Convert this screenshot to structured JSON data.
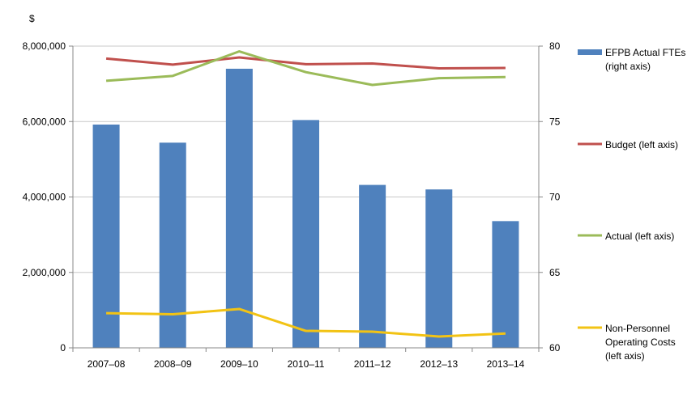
{
  "chart_data": {
    "type": "bar",
    "categories": [
      "2007–08",
      "2008–09",
      "2009–10",
      "2010–11",
      "2011–12",
      "2012–13",
      "2013–14"
    ],
    "left_axis": {
      "unit_label": "$",
      "ylim": [
        0,
        8000000
      ],
      "ticks": [
        0,
        2000000,
        4000000,
        6000000,
        8000000
      ],
      "tick_labels": [
        "0",
        "2,000,000",
        "4,000,000",
        "6,000,000",
        "8,000,000"
      ]
    },
    "right_axis": {
      "ylim": [
        60,
        80
      ],
      "ticks": [
        60,
        65,
        70,
        75,
        80
      ],
      "tick_labels": [
        "60",
        "65",
        "70",
        "75",
        "80"
      ]
    },
    "series": [
      {
        "name": "EFPB Actual FTEs (right axis)",
        "type": "bar",
        "axis": "right",
        "color": "#4F81BD",
        "values": [
          74.8,
          73.6,
          78.5,
          75.1,
          70.8,
          70.5,
          68.4
        ]
      },
      {
        "name": "Budget (left axis)",
        "type": "line",
        "axis": "left",
        "color": "#C0504D",
        "values": [
          7670000,
          7510000,
          7700000,
          7520000,
          7540000,
          7410000,
          7420000
        ]
      },
      {
        "name": "Actual (left axis)",
        "type": "line",
        "axis": "left",
        "color": "#9BBB59",
        "values": [
          7080000,
          7210000,
          7860000,
          7310000,
          6970000,
          7150000,
          7180000
        ]
      },
      {
        "name": "Non-Personnel Operating Costs (left axis)",
        "type": "line",
        "axis": "left",
        "color": "#F2C314",
        "values": [
          920000,
          890000,
          1030000,
          450000,
          430000,
          300000,
          380000
        ]
      }
    ],
    "legend": {
      "placement": "right",
      "entries": [
        [
          "EFPB Actual FTEs",
          "(right axis)"
        ],
        [
          "Budget (left axis)"
        ],
        [
          "Actual (left axis)"
        ],
        [
          "Non-Personnel",
          "Operating Costs",
          "(left axis)"
        ]
      ]
    },
    "grid": {
      "horizontal": true
    }
  }
}
